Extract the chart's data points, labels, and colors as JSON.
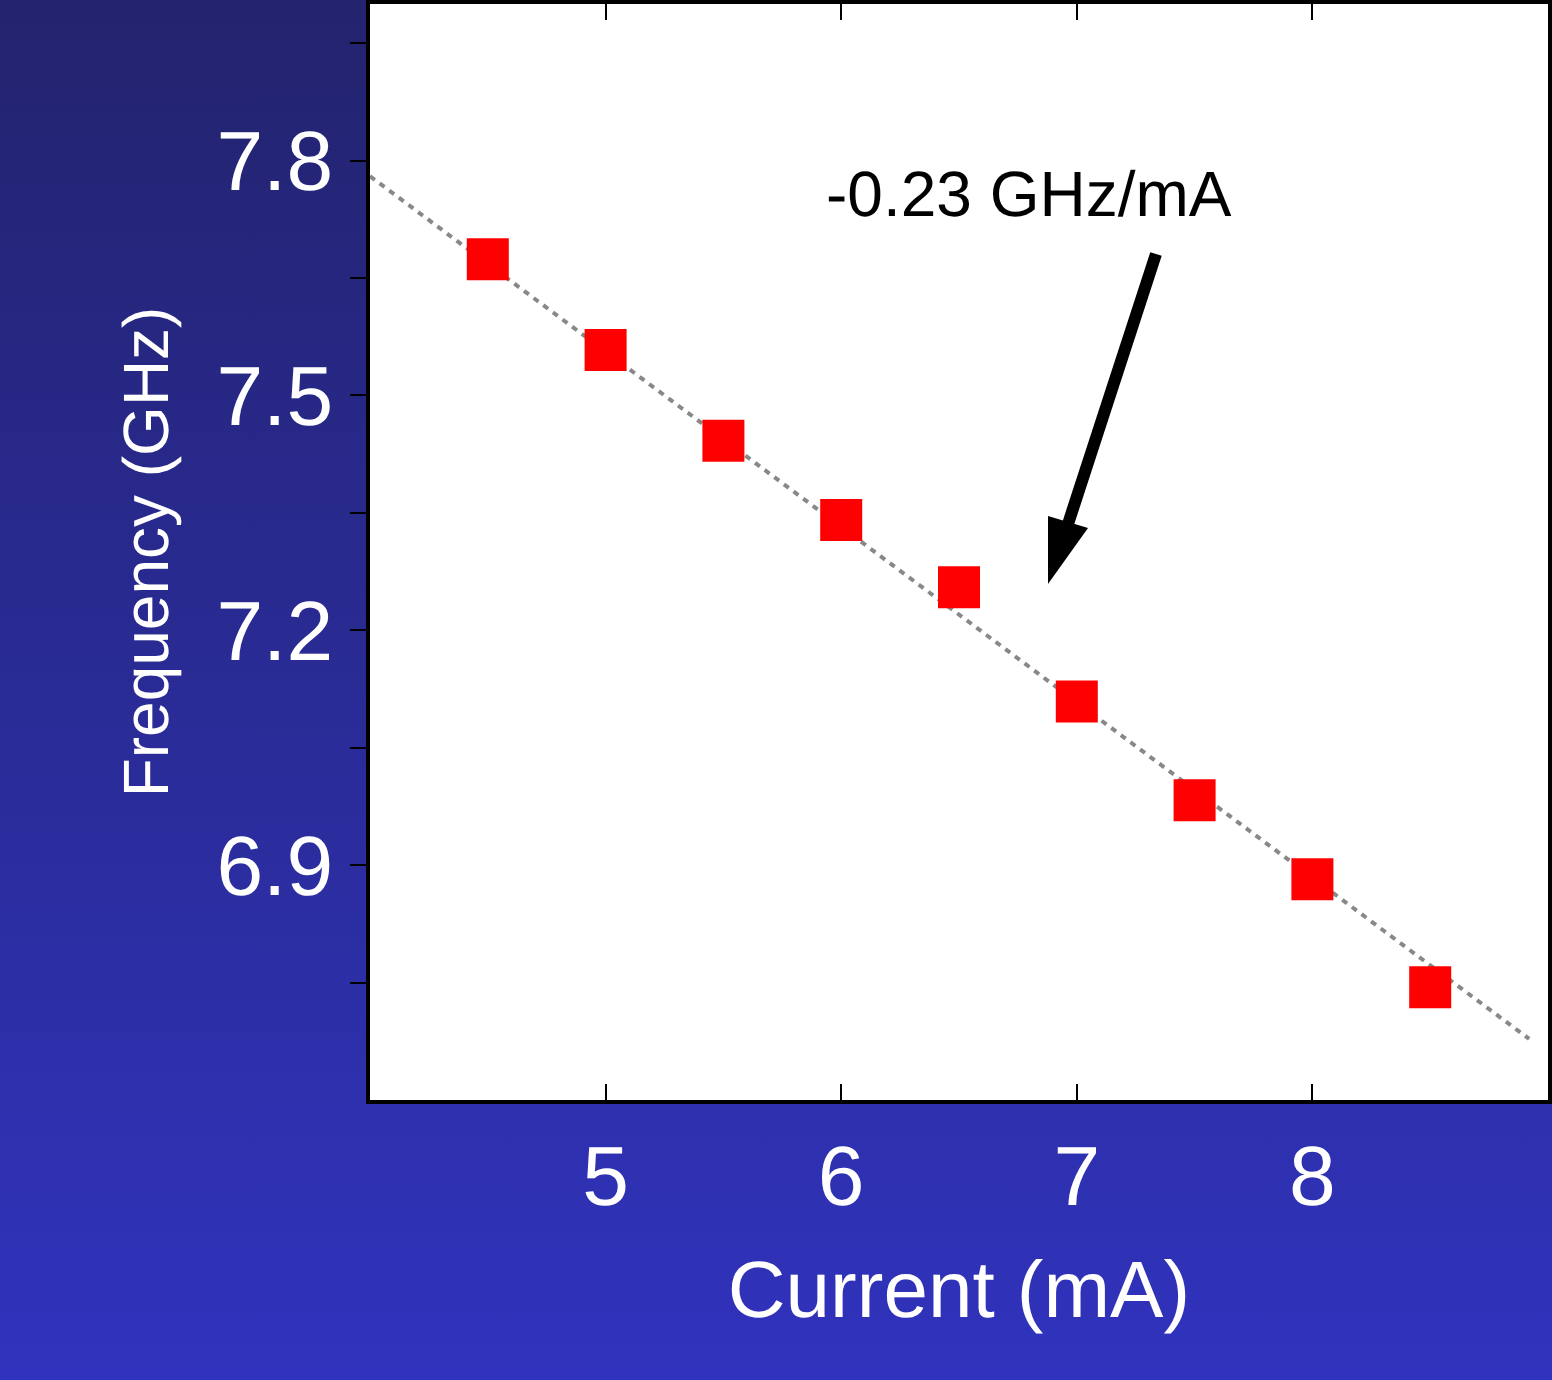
{
  "chart_data": {
    "type": "scatter",
    "xlabel": "Current (mA)",
    "ylabel": "Frequency (GHz)",
    "xlim": [
      4,
      9
    ],
    "xticks": [
      5,
      6,
      7,
      8
    ],
    "ylim": [
      6.6,
      8.0
    ],
    "yticks": [
      6.9,
      7.2,
      7.5,
      7.8,
      {
        "value": 6.75,
        "label": null
      },
      {
        "value": 7.05,
        "label": null
      },
      {
        "value": 7.35,
        "label": null
      },
      {
        "value": 7.65,
        "label": null
      },
      {
        "value": 7.95,
        "label": null
      }
    ],
    "marker": "square",
    "grid": false,
    "series": [
      {
        "color": "#ff0000",
        "x": [
          4.5,
          5,
          5.5,
          6,
          6.5,
          7,
          7.5,
          8,
          8.5
        ],
        "values": [
          7.674,
          7.558,
          7.442,
          7.341,
          7.255,
          7.109,
          6.983,
          6.882,
          6.744
        ]
      },
      {
        "type": "line",
        "color": "#888888",
        "line_style": "dotted",
        "marker": "none",
        "x": [
          4,
          8.92
        ],
        "values": [
          7.78,
          6.678
        ]
      }
    ],
    "annotations": [
      "-0.23 GHz/mA"
    ]
  }
}
